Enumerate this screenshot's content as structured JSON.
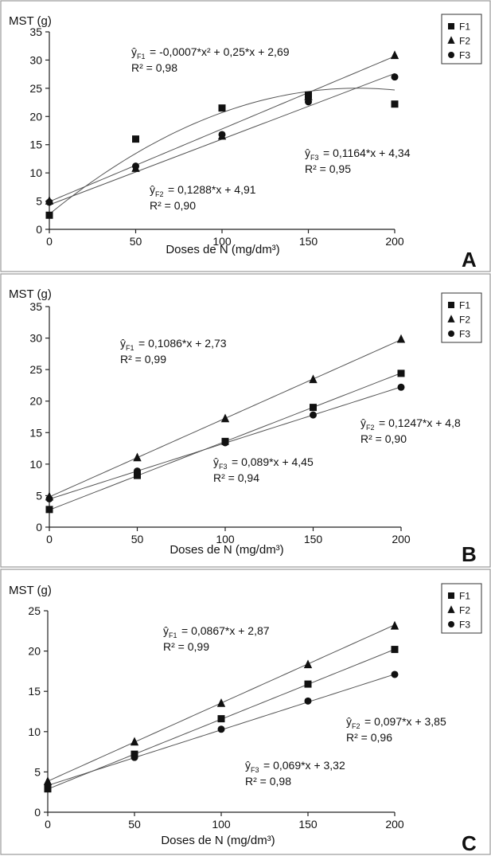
{
  "figure": {
    "panels": [
      {
        "letter": "A",
        "ylabel": "MST (g)",
        "xlabel": "Doses de N (mg/dm³)",
        "equations": [
          {
            "id": "F1",
            "text": "= -0,0007*x² + 0,25*x + 2,69",
            "r2": "R² = 0,98"
          },
          {
            "id": "F2",
            "text": "= 0,1288*x + 4,91",
            "r2": "R² = 0,90"
          },
          {
            "id": "F3",
            "text": "= 0,1164*x + 4,34",
            "r2": "R² = 0,95"
          }
        ]
      },
      {
        "letter": "B",
        "ylabel": "MST (g)",
        "xlabel": "Doses de N (mg/dm³)",
        "equations": [
          {
            "id": "F1",
            "text": "= 0,1086*x + 2,73",
            "r2": "R² = 0,99"
          },
          {
            "id": "F2",
            "text": "= 0,1247*x + 4,8",
            "r2": "R² = 0,90"
          },
          {
            "id": "F3",
            "text": "= 0,089*x + 4,45",
            "r2": "R² = 0,94"
          }
        ]
      },
      {
        "letter": "C",
        "ylabel": "MST (g)",
        "xlabel": "Doses de N (mg/dm³)",
        "equations": [
          {
            "id": "F1",
            "text": "= 0,0867*x + 2,87",
            "r2": "R² = 0,99"
          },
          {
            "id": "F2",
            "text": "= 0,097*x + 3,85",
            "r2": "R² = 0,96"
          },
          {
            "id": "F3",
            "text": "= 0,069*x + 3,32",
            "r2": "R² = 0,98"
          }
        ]
      }
    ]
  },
  "chart_data": [
    {
      "panel": "A",
      "type": "scatter",
      "xlabel": "Doses de N (mg/dm³)",
      "ylabel": "MST (g)",
      "x": [
        0,
        50,
        100,
        150,
        200
      ],
      "xticks": [
        0,
        50,
        100,
        150,
        200
      ],
      "xlim": [
        0,
        200
      ],
      "ylim": [
        0,
        35
      ],
      "yticks": [
        0,
        5,
        10,
        15,
        20,
        25,
        30,
        35
      ],
      "grid": false,
      "legend_position": "top-right",
      "series": [
        {
          "name": "F1",
          "marker": "square",
          "values": [
            2.5,
            16,
            21.5,
            23.8,
            22.2
          ],
          "fit": {
            "a": -0.0007,
            "b": 0.25,
            "c": 2.69
          },
          "r2": 0.98
        },
        {
          "name": "F2",
          "marker": "triangle",
          "values": [
            5,
            10.8,
            16.5,
            23.5,
            30.8
          ],
          "fit": {
            "a": 0,
            "b": 0.1288,
            "c": 4.91
          },
          "r2": 0.9
        },
        {
          "name": "F3",
          "marker": "circle",
          "values": [
            4.8,
            11.2,
            16.8,
            22.6,
            27
          ],
          "fit": {
            "a": 0,
            "b": 0.1164,
            "c": 4.34
          },
          "r2": 0.95
        }
      ]
    },
    {
      "panel": "B",
      "type": "scatter",
      "xlabel": "Doses de N (mg/dm³)",
      "ylabel": "MST (g)",
      "x": [
        0,
        50,
        100,
        150,
        200
      ],
      "xticks": [
        0,
        50,
        100,
        150,
        200
      ],
      "xlim": [
        0,
        200
      ],
      "ylim": [
        0,
        35
      ],
      "yticks": [
        0,
        5,
        10,
        15,
        20,
        25,
        30,
        35
      ],
      "grid": false,
      "legend_position": "top-right",
      "series": [
        {
          "name": "F1",
          "marker": "square",
          "values": [
            2.8,
            8.2,
            13.6,
            19,
            24.4
          ],
          "fit": {
            "a": 0,
            "b": 0.1086,
            "c": 2.73
          },
          "r2": 0.99
        },
        {
          "name": "F2",
          "marker": "triangle",
          "values": [
            4.8,
            11,
            17.2,
            23.4,
            29.8
          ],
          "fit": {
            "a": 0,
            "b": 0.1247,
            "c": 4.8
          },
          "r2": 0.9
        },
        {
          "name": "F3",
          "marker": "circle",
          "values": [
            4.5,
            8.9,
            13.4,
            17.8,
            22.2
          ],
          "fit": {
            "a": 0,
            "b": 0.089,
            "c": 4.45
          },
          "r2": 0.94
        }
      ]
    },
    {
      "panel": "C",
      "type": "scatter",
      "xlabel": "Doses de N (mg/dm³)",
      "ylabel": "MST (g)",
      "x": [
        0,
        50,
        100,
        150,
        200
      ],
      "xticks": [
        0,
        50,
        100,
        150,
        200
      ],
      "xlim": [
        0,
        200
      ],
      "ylim": [
        0,
        25
      ],
      "yticks": [
        0,
        5,
        10,
        15,
        20,
        25
      ],
      "grid": false,
      "legend_position": "top-right",
      "series": [
        {
          "name": "F1",
          "marker": "square",
          "values": [
            2.9,
            7.2,
            11.6,
            15.9,
            20.2
          ],
          "fit": {
            "a": 0,
            "b": 0.0867,
            "c": 2.87
          },
          "r2": 0.99
        },
        {
          "name": "F2",
          "marker": "triangle",
          "values": [
            3.8,
            8.7,
            13.5,
            18.3,
            23.1
          ],
          "fit": {
            "a": 0,
            "b": 0.097,
            "c": 3.85
          },
          "r2": 0.96
        },
        {
          "name": "F3",
          "marker": "circle",
          "values": [
            3.3,
            6.8,
            10.3,
            13.8,
            17.1
          ],
          "fit": {
            "a": 0,
            "b": 0.069,
            "c": 3.32
          },
          "r2": 0.98
        }
      ]
    }
  ]
}
